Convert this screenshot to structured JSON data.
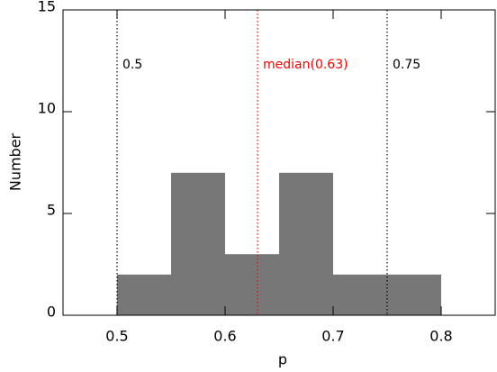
{
  "chart_data": {
    "type": "histogram",
    "xlabel": "p",
    "ylabel": "Number",
    "bins": [
      0.5,
      0.55,
      0.6,
      0.65,
      0.7,
      0.75,
      0.8
    ],
    "values": [
      2,
      7,
      3,
      7,
      2,
      2
    ],
    "color": "#777777",
    "xlim": [
      0.45,
      0.85
    ],
    "xticks": [
      0.5,
      0.6,
      0.7,
      0.8
    ],
    "ylim": [
      0,
      15
    ],
    "yticks": [
      0,
      5,
      10,
      15
    ],
    "vlines": [
      {
        "value": 0.5,
        "label": "0.5",
        "color": "#000000"
      },
      {
        "value": 0.63,
        "label": "median(0.63)",
        "color": "#ff0000"
      },
      {
        "value": 0.75,
        "label": "0.75",
        "color": "#000000"
      }
    ]
  }
}
